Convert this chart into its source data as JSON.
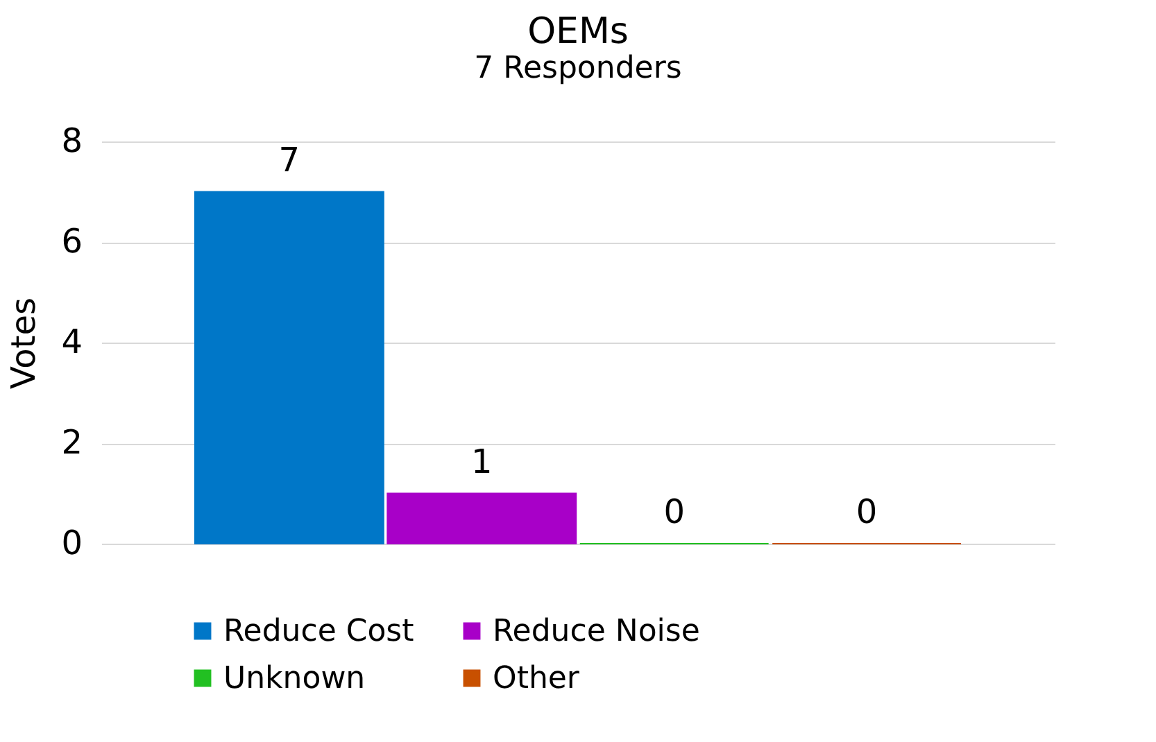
{
  "chart_data": {
    "type": "bar",
    "title": "OEMs",
    "subtitle": "7 Responders",
    "ylabel": "Votes",
    "categories": [
      null
    ],
    "series": [
      {
        "name": "Reduce Cost",
        "color": "#0077c8",
        "values": [
          7
        ]
      },
      {
        "name": "Reduce Noise",
        "color": "#a800c8",
        "values": [
          1
        ]
      },
      {
        "name": "Unknown",
        "color": "#22c022",
        "values": [
          0
        ]
      },
      {
        "name": "Other",
        "color": "#c85000",
        "values": [
          0
        ]
      }
    ],
    "ylim": [
      0,
      8
    ],
    "yticks": [
      0,
      2,
      4,
      6,
      8
    ],
    "grid": "y",
    "legend": "bottom",
    "data_labels": true,
    "tick_labels": "y"
  }
}
